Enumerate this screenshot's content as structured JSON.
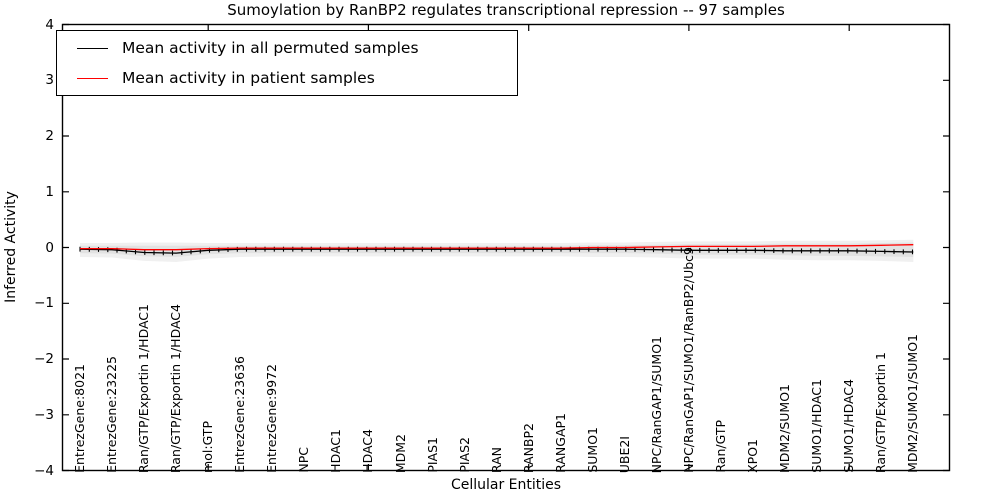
{
  "figure": {
    "background": "#ffffff",
    "frame_color": "#000000"
  },
  "chart_data": {
    "type": "line",
    "title": "Sumoylation by RanBP2 regulates transcriptional repression -- 97 samples",
    "xlabel": "Cellular Entities",
    "ylabel": "Inferred Activity",
    "ylim": [
      -4,
      4
    ],
    "yticks": [
      4,
      3,
      2,
      1,
      0,
      -1,
      -2,
      -3,
      -4
    ],
    "ytick_labels": [
      "4",
      "3",
      "2",
      "1",
      "0",
      "−1",
      "−2",
      "−3",
      "−4"
    ],
    "xtick_marker_indices": [
      4,
      9,
      14,
      19,
      24
    ],
    "grid": false,
    "legend_position": "upper-left",
    "tick_direction": "in",
    "categories": [
      "EntrezGene:8021",
      "EntrezGene:23225",
      "Ran/GTP/Exportin 1/HDAC1",
      "Ran/GTP/Exportin 1/HDAC4",
      "mol:GTP",
      "EntrezGene:23636",
      "EntrezGene:9972",
      "NPC",
      "HDAC1",
      "HDAC4",
      "MDM2",
      "PIAS1",
      "PIAS2",
      "RAN",
      "RANBP2",
      "RANGAP1",
      "SUMO1",
      "UBE2I",
      "NPC/RanGAP1/SUMO1",
      "NPC/RanGAP1/SUMO1/RanBP2/Ubc9",
      "Ran/GTP",
      "XPO1",
      "MDM2/SUMO1",
      "SUMO1/HDAC1",
      "SUMO1/HDAC4",
      "Ran/GTP/Exportin 1",
      "MDM2/SUMO1/SUMO1"
    ],
    "series": [
      {
        "name": "Mean activity in all permuted samples",
        "color": "#000000",
        "marker": "|",
        "values": [
          -0.03,
          -0.04,
          -0.09,
          -0.1,
          -0.05,
          -0.03,
          -0.03,
          -0.03,
          -0.03,
          -0.03,
          -0.03,
          -0.03,
          -0.03,
          -0.03,
          -0.03,
          -0.03,
          -0.03,
          -0.03,
          -0.04,
          -0.05,
          -0.05,
          -0.05,
          -0.06,
          -0.06,
          -0.06,
          -0.07,
          -0.08
        ]
      },
      {
        "name": "Mean activity in patient samples",
        "color": "#ff0000",
        "marker": "none",
        "values": [
          -0.02,
          -0.02,
          -0.04,
          -0.04,
          -0.02,
          -0.01,
          -0.01,
          -0.01,
          -0.01,
          -0.01,
          -0.01,
          -0.01,
          -0.01,
          -0.01,
          -0.01,
          -0.01,
          0.0,
          0.0,
          0.01,
          0.02,
          0.02,
          0.02,
          0.03,
          0.03,
          0.03,
          0.04,
          0.05
        ]
      }
    ],
    "bands": [
      {
        "name": "permuted-spread-outer",
        "color": "#f0f0f0",
        "upper": [
          0.08,
          0.08,
          0.09,
          0.09,
          0.08,
          0.08,
          0.08,
          0.08,
          0.08,
          0.08,
          0.08,
          0.08,
          0.08,
          0.08,
          0.08,
          0.08,
          0.09,
          0.09,
          0.1,
          0.11,
          0.11,
          0.11,
          0.12,
          0.12,
          0.12,
          0.13,
          0.14
        ],
        "lower": [
          -0.17,
          -0.18,
          -0.24,
          -0.26,
          -0.2,
          -0.17,
          -0.16,
          -0.16,
          -0.16,
          -0.16,
          -0.16,
          -0.16,
          -0.16,
          -0.16,
          -0.16,
          -0.16,
          -0.17,
          -0.17,
          -0.18,
          -0.2,
          -0.2,
          -0.2,
          -0.22,
          -0.23,
          -0.23,
          -0.24,
          -0.26
        ]
      },
      {
        "name": "permuted-spread-inner",
        "color": "#e2e2e2",
        "upper": [
          0.03,
          0.03,
          0.03,
          0.03,
          0.03,
          0.03,
          0.03,
          0.03,
          0.03,
          0.03,
          0.03,
          0.03,
          0.03,
          0.03,
          0.03,
          0.03,
          0.04,
          0.04,
          0.05,
          0.06,
          0.06,
          0.06,
          0.07,
          0.07,
          0.07,
          0.08,
          0.09
        ],
        "lower": [
          -0.1,
          -0.11,
          -0.16,
          -0.17,
          -0.12,
          -0.1,
          -0.1,
          -0.1,
          -0.1,
          -0.1,
          -0.1,
          -0.1,
          -0.1,
          -0.1,
          -0.1,
          -0.1,
          -0.1,
          -0.1,
          -0.11,
          -0.13,
          -0.13,
          -0.13,
          -0.14,
          -0.15,
          -0.15,
          -0.16,
          -0.17
        ]
      }
    ]
  }
}
